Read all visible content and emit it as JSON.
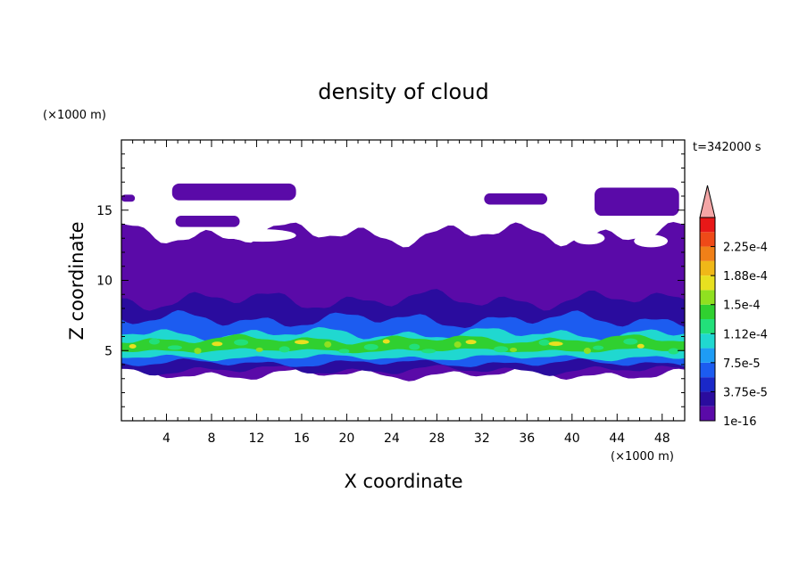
{
  "chart_data": {
    "type": "heatmap",
    "title": "density of cloud",
    "xlabel": "X coordinate",
    "ylabel": "Z coordinate",
    "x_unit": "(×1000 m)",
    "y_unit": "(×1000 m)",
    "time_label": "t=342000 s",
    "xlim": [
      0,
      50
    ],
    "ylim": [
      0,
      20
    ],
    "x_ticks": [
      4,
      8,
      12,
      16,
      20,
      24,
      28,
      32,
      36,
      40,
      44,
      48
    ],
    "y_ticks": [
      5,
      10,
      15
    ],
    "colorbar": {
      "labels": [
        "1e-16",
        "3.75e-5",
        "7.5e-5",
        "1.12e-4",
        "1.5e-4",
        "1.88e-4",
        "2.25e-4"
      ],
      "level_colors": [
        "#5a0aa8",
        "#2a0c9e",
        "#1a28c8",
        "#1c5cf0",
        "#1e9cf5",
        "#20d8d0",
        "#22e07a",
        "#30d030",
        "#90e020",
        "#e8e020",
        "#f0b818",
        "#f08018",
        "#ef4a18",
        "#e81818"
      ],
      "overflow_color": "#f4a6a6",
      "extend": "max"
    },
    "layers": [
      {
        "level": "1e-16",
        "z_bottom": 3.3,
        "z_top": 13.3
      },
      {
        "level": "3.75e-5",
        "z_bottom": 3.6,
        "z_top": 8.6
      },
      {
        "level": "7.5e-5",
        "z_bottom": 4.1,
        "z_top": 7.2
      },
      {
        "level": "1.12e-4",
        "z_bottom": 4.5,
        "z_top": 6.2
      },
      {
        "level": "1.5e-4",
        "z_bottom": 5.0,
        "z_top": 5.8
      }
    ],
    "upper_patches": [
      {
        "x": [
          0,
          1.2
        ],
        "z": [
          15.6,
          16.1
        ]
      },
      {
        "x": [
          4.5,
          15.5
        ],
        "z": [
          15.7,
          16.9
        ]
      },
      {
        "x": [
          4.8,
          10.5
        ],
        "z": [
          13.8,
          14.6
        ]
      },
      {
        "x": [
          32.2,
          37.8
        ],
        "z": [
          15.4,
          16.2
        ]
      },
      {
        "x": [
          42.0,
          49.5
        ],
        "z": [
          14.6,
          16.6
        ]
      }
    ]
  }
}
